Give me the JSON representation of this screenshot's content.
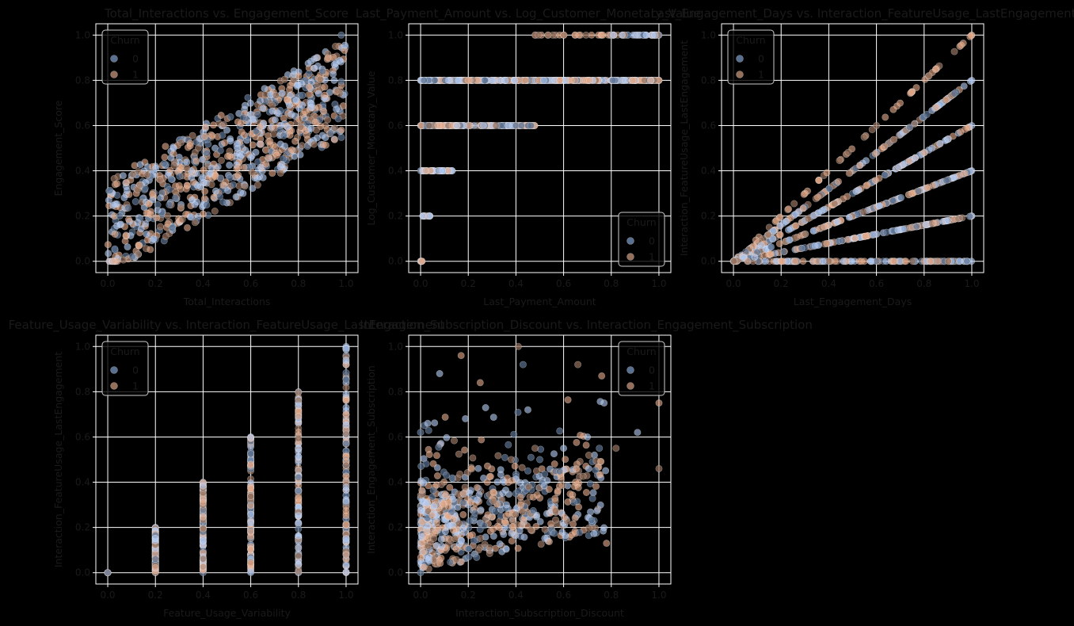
{
  "figure": {
    "background": "#000000",
    "text_color": "#1a1a1a",
    "title_color": "#1a1a1a",
    "grid_color": "#ffffff",
    "spine_color": "#ffffff",
    "series_colors": {
      "0": "#b0c8f0",
      "1": "#e2a888"
    },
    "series_colors_dark": {
      "0": "#5a7090",
      "1": "#94705c"
    }
  },
  "legend": {
    "title": "Churn",
    "labels": [
      "0",
      "1"
    ]
  },
  "chart_data": [
    {
      "type": "scatter",
      "title": "Total_Interactions vs. Engagement_Score",
      "xlabel": "Total_Interactions",
      "ylabel": "Engagement_Score",
      "xlim": [
        -0.05,
        1.05
      ],
      "ylim": [
        -0.05,
        1.05
      ],
      "xticks": [
        "0.0",
        "0.2",
        "0.4",
        "0.6",
        "0.8",
        "1.0"
      ],
      "yticks": [
        "0.0",
        "0.2",
        "0.4",
        "0.6",
        "0.8",
        "1.0"
      ],
      "grid": true,
      "legend_position": "upper-left",
      "pattern": "linear_band",
      "series": [
        {
          "name": "0",
          "points": [
            [
              0.02,
              0.3
            ],
            [
              0.05,
              0.2
            ],
            [
              0.1,
              0.38
            ],
            [
              0.15,
              0.28
            ],
            [
              0.2,
              0.42
            ],
            [
              0.25,
              0.33
            ],
            [
              0.3,
              0.46
            ],
            [
              0.35,
              0.4
            ],
            [
              0.4,
              0.55
            ],
            [
              0.45,
              0.5
            ],
            [
              0.5,
              0.58
            ],
            [
              0.55,
              0.52
            ],
            [
              0.6,
              0.65
            ],
            [
              0.65,
              0.6
            ],
            [
              0.7,
              0.72
            ],
            [
              0.75,
              0.66
            ],
            [
              0.8,
              0.78
            ],
            [
              0.85,
              0.7
            ],
            [
              0.9,
              0.85
            ],
            [
              0.95,
              0.8
            ],
            [
              0.98,
              1.0
            ],
            [
              0.03,
              0.05
            ],
            [
              0.02,
              0.0
            ]
          ]
        },
        {
          "name": "1",
          "points": [
            [
              0.03,
              0.12
            ],
            [
              0.08,
              0.25
            ],
            [
              0.12,
              0.3
            ],
            [
              0.18,
              0.22
            ],
            [
              0.22,
              0.36
            ],
            [
              0.28,
              0.44
            ],
            [
              0.33,
              0.32
            ],
            [
              0.38,
              0.5
            ],
            [
              0.42,
              0.42
            ],
            [
              0.48,
              0.6
            ],
            [
              0.52,
              0.46
            ],
            [
              0.58,
              0.62
            ],
            [
              0.62,
              0.55
            ],
            [
              0.68,
              0.7
            ],
            [
              0.72,
              0.6
            ],
            [
              0.78,
              0.8
            ],
            [
              0.82,
              0.65
            ],
            [
              0.88,
              0.9
            ],
            [
              0.92,
              0.72
            ],
            [
              0.97,
              0.95
            ],
            [
              0.98,
              0.58
            ],
            [
              0.04,
              0.0
            ]
          ]
        }
      ]
    },
    {
      "type": "scatter",
      "title": "Last_Payment_Amount vs. Log_Customer_Monetary_Value",
      "xlabel": "Last_Payment_Amount",
      "ylabel": "Log_Customer_Monetary_Value",
      "xlim": [
        -0.05,
        1.05
      ],
      "ylim": [
        -0.05,
        1.05
      ],
      "xticks": [
        "0.0",
        "0.2",
        "0.4",
        "0.6",
        "0.8",
        "1.0"
      ],
      "yticks": [
        "0.0",
        "0.2",
        "0.4",
        "0.6",
        "0.8",
        "1.0"
      ],
      "grid": true,
      "legend_position": "lower-right",
      "pattern": "horizontal_levels",
      "series": [
        {
          "name": "0",
          "points": [
            [
              0.0,
              0.0
            ],
            [
              0.01,
              0.2
            ],
            [
              0.03,
              0.2
            ],
            [
              0.0,
              0.4
            ],
            [
              0.05,
              0.4
            ],
            [
              0.1,
              0.4
            ],
            [
              0.13,
              0.4
            ],
            [
              0.0,
              0.6
            ],
            [
              0.1,
              0.6
            ],
            [
              0.2,
              0.6
            ],
            [
              0.3,
              0.6
            ],
            [
              0.4,
              0.6
            ],
            [
              0.47,
              0.6
            ],
            [
              0.0,
              0.8
            ],
            [
              0.1,
              0.8
            ],
            [
              0.2,
              0.8
            ],
            [
              0.3,
              0.8
            ],
            [
              0.4,
              0.8
            ],
            [
              0.5,
              0.8
            ],
            [
              0.6,
              0.8
            ],
            [
              0.7,
              0.8
            ],
            [
              0.8,
              0.8
            ],
            [
              0.9,
              0.8
            ],
            [
              1.0,
              0.8
            ],
            [
              0.8,
              1.0
            ],
            [
              0.9,
              1.0
            ],
            [
              1.0,
              1.0
            ]
          ]
        },
        {
          "name": "1",
          "points": [
            [
              0.02,
              0.2
            ],
            [
              0.08,
              0.4
            ],
            [
              0.15,
              0.6
            ],
            [
              0.35,
              0.6
            ],
            [
              0.45,
              0.6
            ],
            [
              0.05,
              0.8
            ],
            [
              0.25,
              0.8
            ],
            [
              0.55,
              0.8
            ],
            [
              0.75,
              0.8
            ],
            [
              0.95,
              0.8
            ],
            [
              0.48,
              1.0
            ],
            [
              0.6,
              1.0
            ],
            [
              0.67,
              1.0
            ],
            [
              0.76,
              1.0
            ],
            [
              0.85,
              1.0
            ],
            [
              0.97,
              1.0
            ]
          ]
        }
      ]
    },
    {
      "type": "scatter",
      "title": "Last_Engagement_Days vs. Interaction_FeatureUsage_LastEngagement",
      "xlabel": "Last_Engagement_Days",
      "ylabel": "Interaction_FeatureUsage_LastEngagement",
      "xlim": [
        -0.05,
        1.05
      ],
      "ylim": [
        -0.05,
        1.05
      ],
      "xticks": [
        "0.0",
        "0.2",
        "0.4",
        "0.6",
        "0.8",
        "1.0"
      ],
      "yticks": [
        "0.0",
        "0.2",
        "0.4",
        "0.6",
        "0.8",
        "1.0"
      ],
      "grid": true,
      "legend_position": "upper-left",
      "pattern": "fan_rays",
      "series": [
        {
          "name": "0",
          "points": [
            [
              0.0,
              0.0
            ],
            [
              0.1,
              0.02
            ],
            [
              0.3,
              0.06
            ],
            [
              0.5,
              0.1
            ],
            [
              0.7,
              0.14
            ],
            [
              0.9,
              0.18
            ],
            [
              1.0,
              0.2
            ],
            [
              0.1,
              0.04
            ],
            [
              0.3,
              0.12
            ],
            [
              0.5,
              0.2
            ],
            [
              0.7,
              0.28
            ],
            [
              0.9,
              0.36
            ],
            [
              1.0,
              0.4
            ],
            [
              0.1,
              0.06
            ],
            [
              0.3,
              0.18
            ],
            [
              0.5,
              0.3
            ],
            [
              0.7,
              0.42
            ],
            [
              0.9,
              0.54
            ],
            [
              1.0,
              0.6
            ],
            [
              0.1,
              0.08
            ],
            [
              0.3,
              0.24
            ],
            [
              0.5,
              0.4
            ],
            [
              0.7,
              0.56
            ],
            [
              0.9,
              0.72
            ],
            [
              1.0,
              0.8
            ],
            [
              0.95,
              0.0
            ],
            [
              0.98,
              0.0
            ]
          ]
        },
        {
          "name": "1",
          "points": [
            [
              0.2,
              0.0
            ],
            [
              0.4,
              0.0
            ],
            [
              0.6,
              0.0
            ],
            [
              0.8,
              0.0
            ],
            [
              0.15,
              0.15
            ],
            [
              0.3,
              0.3
            ],
            [
              0.45,
              0.45
            ],
            [
              0.6,
              0.6
            ],
            [
              0.75,
              0.75
            ],
            [
              0.85,
              0.85
            ],
            [
              0.95,
              0.95
            ],
            [
              1.0,
              1.0
            ],
            [
              0.85,
              0.17
            ],
            [
              0.75,
              0.3
            ],
            [
              0.8,
              0.48
            ],
            [
              0.85,
              0.68
            ]
          ]
        }
      ]
    },
    {
      "type": "scatter",
      "title": "Feature_Usage_Variability vs. Interaction_FeatureUsage_LastEngagement",
      "xlabel": "Feature_Usage_Variability",
      "ylabel": "Interaction_FeatureUsage_LastEngagement",
      "xlim": [
        -0.05,
        1.05
      ],
      "ylim": [
        -0.05,
        1.05
      ],
      "xticks": [
        "0.0",
        "0.2",
        "0.4",
        "0.6",
        "0.8",
        "1.0"
      ],
      "yticks": [
        "0.0",
        "0.2",
        "0.4",
        "0.6",
        "0.8",
        "1.0"
      ],
      "grid": true,
      "legend_position": "upper-left",
      "pattern": "vertical_strips",
      "series": [
        {
          "name": "0",
          "points": [
            [
              0.0,
              0.0
            ],
            [
              0.2,
              0.0
            ],
            [
              0.2,
              0.1
            ],
            [
              0.2,
              0.2
            ],
            [
              0.4,
              0.0
            ],
            [
              0.4,
              0.2
            ],
            [
              0.4,
              0.4
            ],
            [
              0.6,
              0.0
            ],
            [
              0.6,
              0.3
            ],
            [
              0.6,
              0.6
            ],
            [
              0.8,
              0.0
            ],
            [
              0.8,
              0.4
            ],
            [
              0.8,
              0.8
            ],
            [
              1.0,
              0.0
            ],
            [
              1.0,
              0.5
            ],
            [
              1.0,
              1.0
            ]
          ]
        },
        {
          "name": "1",
          "points": [
            [
              0.2,
              0.05
            ],
            [
              0.4,
              0.12
            ],
            [
              0.4,
              0.3
            ],
            [
              0.6,
              0.18
            ],
            [
              0.6,
              0.45
            ],
            [
              0.8,
              0.25
            ],
            [
              0.8,
              0.55
            ],
            [
              0.8,
              0.7
            ],
            [
              1.0,
              0.2
            ],
            [
              1.0,
              0.4
            ],
            [
              1.0,
              0.7
            ],
            [
              1.0,
              0.92
            ]
          ]
        }
      ]
    },
    {
      "type": "scatter",
      "title": "Interaction_Subscription_Discount vs. Interaction_Engagement_Subscription",
      "xlabel": "Interaction_Subscription_Discount",
      "ylabel": "Interaction_Engagement_Subscription",
      "xlim": [
        -0.05,
        1.05
      ],
      "ylim": [
        -0.05,
        1.05
      ],
      "xticks": [
        "0.0",
        "0.2",
        "0.4",
        "0.6",
        "0.8",
        "1.0"
      ],
      "yticks": [
        "0.0",
        "0.2",
        "0.4",
        "0.6",
        "0.8",
        "1.0"
      ],
      "grid": true,
      "legend_position": "upper-right",
      "pattern": "dense_low_cluster",
      "series": [
        {
          "name": "0",
          "points": [
            [
              0.0,
              0.0
            ],
            [
              0.0,
              0.05
            ],
            [
              0.05,
              0.2
            ],
            [
              0.1,
              0.25
            ],
            [
              0.15,
              0.18
            ],
            [
              0.2,
              0.3
            ],
            [
              0.25,
              0.22
            ],
            [
              0.3,
              0.28
            ],
            [
              0.35,
              0.4
            ],
            [
              0.4,
              0.35
            ],
            [
              0.45,
              0.45
            ],
            [
              0.5,
              0.5
            ],
            [
              0.6,
              0.55
            ],
            [
              0.7,
              0.6
            ],
            [
              0.75,
              0.55
            ],
            [
              0.08,
              0.88
            ],
            [
              0.43,
              0.92
            ],
            [
              0.45,
              0.72
            ],
            [
              0.77,
              0.75
            ],
            [
              0.91,
              0.62
            ],
            [
              0.0,
              0.62
            ],
            [
              0.03,
              0.66
            ]
          ]
        },
        {
          "name": "1",
          "points": [
            [
              0.02,
              0.12
            ],
            [
              0.06,
              0.3
            ],
            [
              0.12,
              0.15
            ],
            [
              0.18,
              0.35
            ],
            [
              0.22,
              0.12
            ],
            [
              0.28,
              0.4
            ],
            [
              0.33,
              0.2
            ],
            [
              0.38,
              0.5
            ],
            [
              0.42,
              0.3
            ],
            [
              0.48,
              0.55
            ],
            [
              0.55,
              0.2
            ],
            [
              0.65,
              0.4
            ],
            [
              0.72,
              0.2
            ],
            [
              0.78,
              0.13
            ],
            [
              0.17,
              0.96
            ],
            [
              0.41,
              1.0
            ],
            [
              0.25,
              0.84
            ],
            [
              0.66,
              0.92
            ],
            [
              0.76,
              0.87
            ],
            [
              1.0,
              0.75
            ],
            [
              1.0,
              0.46
            ],
            [
              0.82,
              0.55
            ]
          ]
        }
      ]
    }
  ]
}
